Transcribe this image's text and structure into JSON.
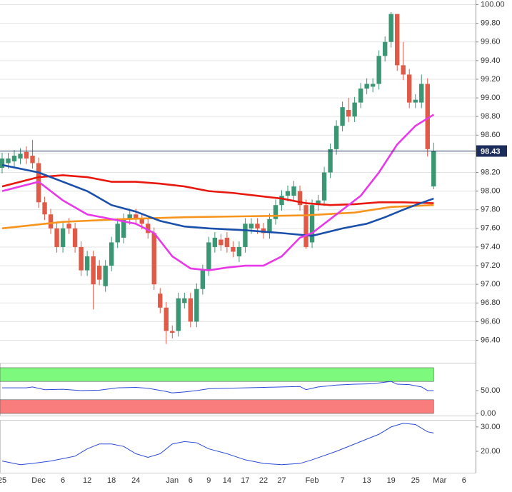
{
  "chart_data": [
    {
      "type": "candlestick",
      "xlim": [
        -0.35,
        77.9
      ],
      "ylim": [
        96.22,
        100.05
      ],
      "yticks": [
        {
          "value": 96.4,
          "label": "96.40"
        },
        {
          "value": 96.6,
          "label": "96.60"
        },
        {
          "value": 96.8,
          "label": "96.80"
        },
        {
          "value": 97.0,
          "label": "97.00"
        },
        {
          "value": 97.2,
          "label": "97.20"
        },
        {
          "value": 97.4,
          "label": "97.40"
        },
        {
          "value": 97.6,
          "label": "97.60"
        },
        {
          "value": 97.8,
          "label": "97.80"
        },
        {
          "value": 98.0,
          "label": "98.00"
        },
        {
          "value": 98.2,
          "label": "98.20"
        },
        {
          "value": 98.4,
          "label": "98.40"
        },
        {
          "value": 98.6,
          "label": "98.60"
        },
        {
          "value": 98.8,
          "label": "98.80"
        },
        {
          "value": 99.0,
          "label": "99.00"
        },
        {
          "value": 99.2,
          "label": "99.20"
        },
        {
          "value": 99.4,
          "label": "99.40"
        },
        {
          "value": 99.6,
          "label": "99.60"
        },
        {
          "value": 99.8,
          "label": "99.80"
        },
        {
          "value": 100.0,
          "label": "100.00"
        }
      ],
      "grid": true,
      "up_color": "#3b9773",
      "down_color": "#e05a48",
      "last_price": 98.43,
      "last_price_color": "#1c2d5c",
      "x": [
        0,
        1,
        2,
        3,
        4,
        5,
        6,
        7,
        8,
        9,
        10,
        11,
        12,
        13,
        14,
        15,
        16,
        17,
        18,
        19,
        20,
        21,
        22,
        23,
        24,
        25,
        26,
        27,
        28,
        29,
        30,
        31,
        32,
        33,
        34,
        35,
        36,
        37,
        38,
        39,
        40,
        41,
        42,
        43,
        44,
        45,
        46,
        47,
        48,
        49,
        50,
        51,
        52,
        53,
        54,
        55,
        56,
        57,
        58,
        59,
        60,
        61,
        62,
        63,
        64,
        65,
        66,
        67,
        68,
        69,
        70,
        71
      ],
      "open": [
        98.25,
        98.3,
        98.32,
        98.35,
        98.42,
        98.38,
        98.3,
        97.88,
        97.75,
        97.6,
        97.4,
        97.65,
        97.6,
        97.4,
        97.15,
        97.3,
        97.2,
        96.98,
        97.2,
        97.45,
        97.5,
        97.7,
        97.75,
        97.7,
        97.65,
        97.55,
        96.9,
        96.75,
        96.5,
        96.5,
        96.8,
        96.85,
        96.6,
        96.95,
        97.15,
        97.4,
        97.48,
        97.5,
        97.4,
        97.3,
        97.4,
        97.6,
        97.65,
        97.6,
        97.55,
        97.7,
        97.85,
        97.95,
        97.95,
        98.0,
        97.85,
        97.45,
        97.85,
        97.9,
        98.2,
        98.45,
        98.7,
        98.87,
        98.8,
        98.95,
        99.1,
        99.12,
        99.15,
        99.45,
        99.6,
        99.9,
        99.35,
        99.25,
        98.95,
        98.95,
        99.15,
        98.05
      ],
      "high": [
        98.41,
        98.41,
        98.44,
        98.46,
        98.48,
        98.55,
        98.36,
        97.94,
        97.81,
        97.66,
        97.66,
        97.71,
        97.66,
        97.46,
        97.36,
        97.36,
        97.26,
        97.26,
        97.51,
        97.71,
        97.76,
        97.81,
        97.81,
        97.76,
        97.71,
        97.61,
        96.96,
        96.81,
        96.56,
        96.91,
        96.91,
        96.91,
        97.01,
        97.21,
        97.51,
        97.56,
        97.54,
        97.56,
        97.46,
        97.46,
        97.71,
        97.71,
        97.71,
        97.66,
        97.76,
        97.91,
        98.01,
        98.06,
        98.11,
        98.06,
        97.91,
        97.91,
        97.96,
        98.26,
        98.51,
        98.76,
        98.96,
        99.0,
        99.01,
        99.16,
        99.21,
        99.21,
        99.51,
        99.66,
        99.92,
        99.9,
        99.6,
        99.31,
        99.04,
        99.25,
        99.21,
        98.52
      ],
      "low": [
        98.19,
        98.24,
        98.26,
        98.29,
        98.29,
        98.24,
        97.82,
        97.69,
        97.54,
        97.34,
        97.34,
        97.54,
        97.34,
        97.09,
        97.09,
        96.73,
        96.99,
        96.92,
        97.14,
        97.39,
        97.44,
        97.64,
        97.64,
        97.59,
        97.49,
        96.94,
        96.69,
        96.36,
        96.42,
        96.44,
        96.74,
        96.54,
        96.54,
        96.89,
        97.09,
        97.34,
        97.36,
        97.34,
        97.29,
        97.24,
        97.34,
        97.54,
        97.54,
        97.49,
        97.49,
        97.64,
        97.79,
        97.89,
        97.89,
        97.79,
        97.38,
        97.39,
        97.79,
        97.84,
        98.14,
        98.39,
        98.64,
        98.74,
        98.74,
        98.89,
        99.04,
        99.06,
        99.09,
        99.39,
        99.54,
        99.29,
        99.19,
        98.89,
        98.89,
        98.89,
        98.37,
        98.02
      ],
      "close": [
        98.35,
        98.35,
        98.38,
        98.4,
        98.35,
        98.3,
        97.88,
        97.75,
        97.6,
        97.4,
        97.6,
        97.6,
        97.4,
        97.15,
        97.3,
        97.0,
        97.05,
        97.2,
        97.45,
        97.65,
        97.7,
        97.75,
        97.7,
        97.65,
        97.55,
        97.0,
        96.75,
        96.5,
        96.48,
        96.85,
        96.85,
        96.6,
        96.95,
        97.15,
        97.45,
        97.5,
        97.42,
        97.4,
        97.35,
        97.4,
        97.65,
        97.65,
        97.6,
        97.55,
        97.7,
        97.85,
        97.95,
        98.0,
        98.05,
        97.85,
        97.4,
        97.85,
        97.9,
        98.2,
        98.45,
        98.7,
        98.9,
        98.8,
        98.95,
        99.1,
        99.15,
        99.15,
        99.45,
        99.6,
        99.9,
        99.35,
        99.25,
        98.95,
        98.98,
        99.15,
        98.45,
        98.43
      ],
      "series": [
        {
          "color": "#f7941d",
          "x": [
            0,
            10,
            20,
            30,
            40,
            50,
            58,
            64,
            71
          ],
          "values": [
            97.6,
            97.67,
            97.7,
            97.72,
            97.73,
            97.74,
            97.77,
            97.83,
            97.85
          ]
        },
        {
          "color": "#e8180e",
          "x": [
            0,
            6,
            10,
            14,
            18,
            22,
            26,
            30,
            34,
            38,
            42,
            46,
            50,
            54,
            58,
            62,
            66,
            71
          ],
          "values": [
            98.05,
            98.15,
            98.17,
            98.15,
            98.1,
            98.1,
            98.08,
            98.05,
            98.0,
            97.98,
            97.95,
            97.92,
            97.87,
            97.85,
            97.86,
            97.88,
            97.88,
            97.87
          ]
        },
        {
          "color": "#1a4faa",
          "x": [
            0,
            6,
            10,
            14,
            18,
            22,
            26,
            30,
            34,
            40,
            46,
            51,
            56,
            60,
            63,
            66,
            68,
            71
          ],
          "values": [
            98.28,
            98.2,
            98.1,
            98.0,
            97.85,
            97.78,
            97.68,
            97.62,
            97.6,
            97.58,
            97.55,
            97.52,
            97.6,
            97.65,
            97.72,
            97.8,
            97.85,
            97.92
          ]
        },
        {
          "color": "#e839e8",
          "x": [
            0,
            6,
            10,
            14,
            18,
            22,
            25,
            28,
            31,
            34,
            37,
            40,
            43,
            46,
            49,
            51,
            53,
            56,
            59,
            62,
            65,
            68,
            71
          ],
          "values": [
            98.0,
            98.1,
            97.9,
            97.75,
            97.7,
            97.65,
            97.55,
            97.3,
            97.17,
            97.15,
            97.18,
            97.2,
            97.2,
            97.3,
            97.5,
            97.55,
            97.65,
            97.8,
            97.95,
            98.2,
            98.5,
            98.7,
            98.82
          ]
        }
      ]
    },
    {
      "type": "line",
      "xlim": [
        -0.35,
        77.9
      ],
      "ylim": [
        -4.7,
        110.9
      ],
      "yticks": [
        {
          "value": 0,
          "label": "0.00"
        },
        {
          "value": 50,
          "label": "50.00"
        }
      ],
      "bands": [
        {
          "from": 70,
          "to": 100,
          "color": "#7dfa7d"
        },
        {
          "from": 0,
          "to": 30,
          "color": "#fa7d7d"
        }
      ],
      "series": [
        {
          "color": "#2b49d6",
          "x": [
            0,
            4,
            5,
            7,
            10,
            13,
            16,
            19,
            22,
            24,
            27,
            28,
            30,
            32,
            34,
            37,
            40,
            43,
            46,
            49,
            50,
            52,
            55,
            58,
            61,
            64,
            65,
            67,
            69,
            70,
            71
          ],
          "values": [
            56,
            56,
            58,
            52,
            53,
            50,
            51,
            56,
            57,
            55,
            48,
            45,
            47,
            50,
            54,
            55,
            56,
            57,
            58,
            59,
            52,
            58,
            62,
            64,
            65,
            70,
            64,
            63,
            58,
            50,
            50
          ]
        }
      ]
    },
    {
      "type": "line",
      "xlim": [
        -0.35,
        77.9
      ],
      "ylim": [
        11.2,
        32.9
      ],
      "yticks": [
        {
          "value": 20,
          "label": "20.00"
        },
        {
          "value": 30,
          "label": "30.00"
        }
      ],
      "xticks": [
        {
          "value": 0,
          "label": "25"
        },
        {
          "value": 6,
          "label": "Dec"
        },
        {
          "value": 10,
          "label": "6"
        },
        {
          "value": 14,
          "label": "12"
        },
        {
          "value": 18,
          "label": "18"
        },
        {
          "value": 22,
          "label": "24"
        },
        {
          "value": 28,
          "label": "Jan"
        },
        {
          "value": 31,
          "label": "6"
        },
        {
          "value": 34,
          "label": "9"
        },
        {
          "value": 37,
          "label": "14"
        },
        {
          "value": 40,
          "label": "17"
        },
        {
          "value": 43,
          "label": "22"
        },
        {
          "value": 46,
          "label": "27"
        },
        {
          "value": 51,
          "label": "Feb"
        },
        {
          "value": 56,
          "label": "7"
        },
        {
          "value": 60,
          "label": "13"
        },
        {
          "value": 64,
          "label": "19"
        },
        {
          "value": 68,
          "label": "25"
        },
        {
          "value": 72,
          "label": "Mar"
        },
        {
          "value": 76,
          "label": "6"
        }
      ],
      "series": [
        {
          "color": "#2b49d6",
          "x": [
            0,
            3,
            5,
            8,
            10,
            12,
            14,
            16,
            18,
            20,
            22,
            24,
            26,
            28,
            30,
            32,
            34,
            37,
            40,
            43,
            46,
            49,
            51,
            55,
            59,
            62,
            64,
            66,
            68,
            70,
            71
          ],
          "values": [
            16,
            14.5,
            15,
            16,
            17,
            18,
            21,
            23,
            23,
            22,
            19,
            17.5,
            19,
            23,
            24,
            23.5,
            21,
            19,
            16.5,
            15,
            14.5,
            15,
            16.5,
            20,
            24,
            27,
            30,
            31.5,
            31,
            28,
            27.5
          ]
        }
      ]
    }
  ]
}
